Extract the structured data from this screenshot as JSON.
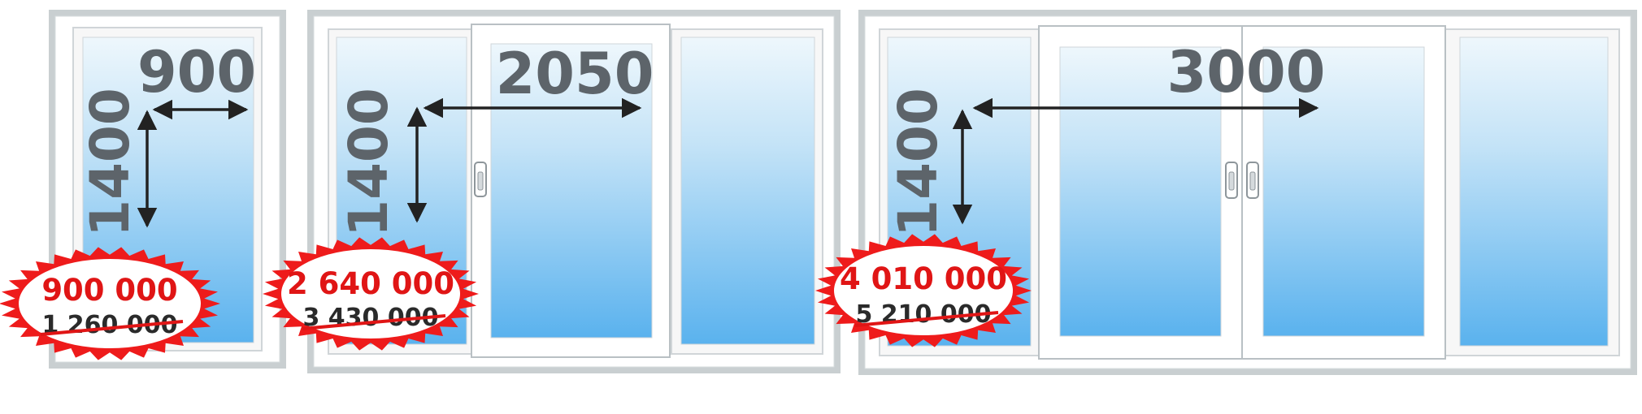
{
  "colors": {
    "frame": "#c9cfd1",
    "frame_inner": "#ffffff",
    "glass_top": "#eef7fc",
    "glass_bottom": "#5ab2ee",
    "dimension_text": "#5d646a",
    "price_red": "#e01515",
    "badge_red": "#ee1b1b"
  },
  "windows": [
    {
      "width_label": "900",
      "height_label": "1400",
      "price_new": "900 000",
      "price_old": "1 260 000",
      "sash_count": 1
    },
    {
      "width_label": "2050",
      "height_label": "1400",
      "price_new": "2 640 000",
      "price_old": "3 430 000",
      "sash_count": 3
    },
    {
      "width_label": "3000",
      "height_label": "1400",
      "price_new": "4 010 000",
      "price_old": "5 210 000",
      "sash_count": 4
    }
  ]
}
